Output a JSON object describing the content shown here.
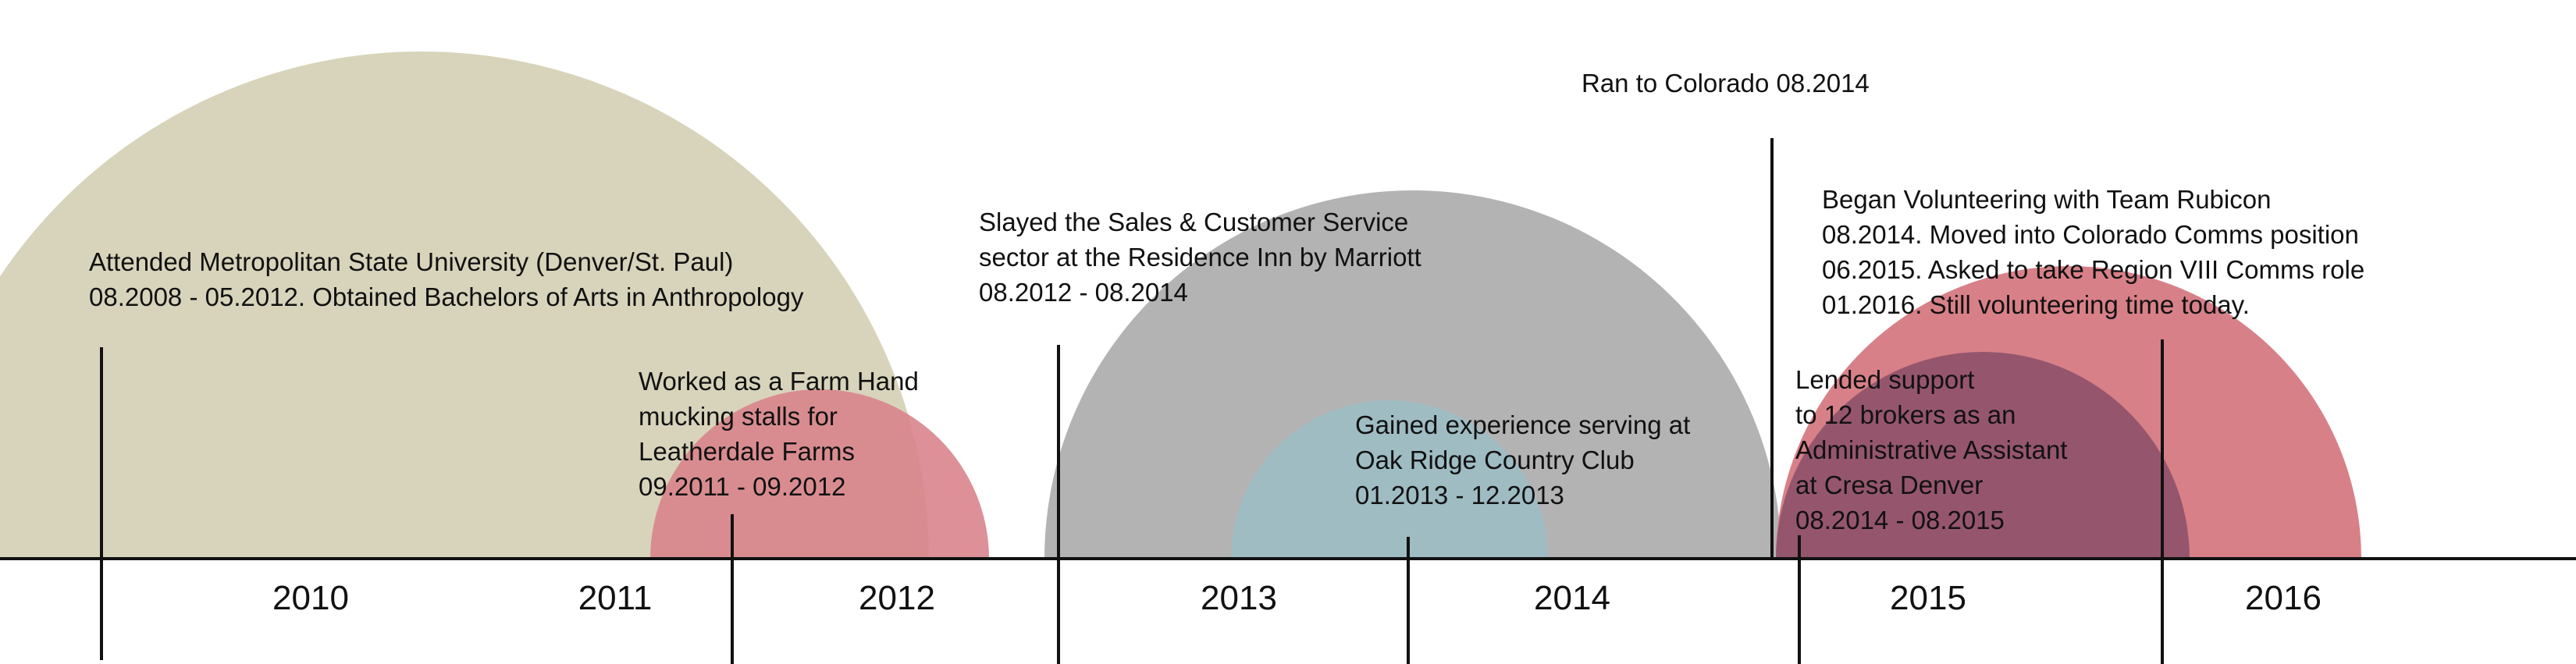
{
  "timeline": {
    "years": [
      "2010",
      "2011",
      "2012",
      "2013",
      "2014",
      "2015",
      "2016"
    ],
    "colors": {
      "university": "#d8d4bb",
      "farm": "#d9848c",
      "residence_inn": "#b3b3b3",
      "oak_ridge": "#9fbcc3",
      "rubicon": "#d88088",
      "cresa": "#8a4f69",
      "axis": "#111111"
    },
    "events": {
      "university": {
        "lines": [
          "Attended Metropolitan State University  (Denver/St. Paul)",
          "08.2008 - 05.2012. Obtained Bachelors of Arts in Anthropology"
        ]
      },
      "farm": {
        "lines": [
          "Worked as a Farm Hand",
          "mucking stalls for",
          "Leatherdale Farms",
          "09.2011 - 09.2012"
        ]
      },
      "residence_inn": {
        "lines": [
          "Slayed the  Sales & Customer Service",
          "sector at the Residence Inn by Marriott",
          "08.2012 - 08.2014"
        ]
      },
      "oak_ridge": {
        "lines": [
          "Gained experience serving at",
          "Oak Ridge Country Club",
          "01.2013 - 12.2013"
        ]
      },
      "colorado": {
        "lines": [
          "Ran to Colorado 08.2014"
        ]
      },
      "rubicon": {
        "lines": [
          "Began Volunteering with Team Rubicon",
          "08.2014. Moved into Colorado Comms position",
          "06.2015. Asked to take Region VIII Comms role",
          "01.2016. Still volunteering time today."
        ]
      },
      "cresa": {
        "lines": [
          "Lended support",
          "to 12 brokers as an",
          "Administrative Assistant",
          "at Cresa Denver",
          "08.2014 - 08.2015"
        ]
      }
    }
  }
}
